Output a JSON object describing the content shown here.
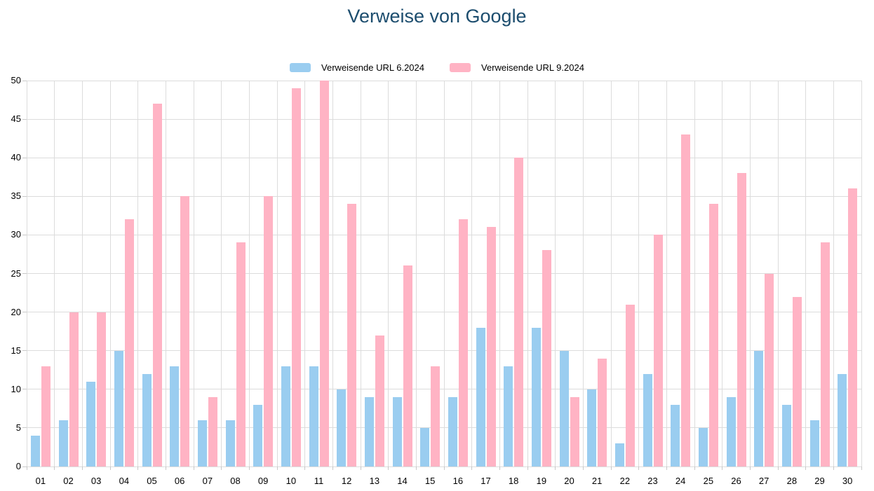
{
  "title": "Verweise von Google",
  "legend": {
    "series1_label": "Verweisende URL 6.2024",
    "series2_label": "Verweisende URL 9.2024"
  },
  "colors": {
    "title": "#1C4D6E",
    "series1": "#9ACDF0",
    "series2": "#FFB3C4",
    "grid": "#DCDCDC",
    "tick": "#C8C8C8",
    "axis_label": "#000000"
  },
  "chart_data": {
    "type": "bar",
    "title": "Verweise von Google",
    "xlabel": "",
    "ylabel": "",
    "categories": [
      "01",
      "02",
      "03",
      "04",
      "05",
      "06",
      "07",
      "08",
      "09",
      "10",
      "11",
      "12",
      "13",
      "14",
      "15",
      "16",
      "17",
      "18",
      "19",
      "20",
      "21",
      "22",
      "23",
      "24",
      "25",
      "26",
      "27",
      "28",
      "29",
      "30"
    ],
    "series": [
      {
        "name": "Verweisende URL 6.2024",
        "color": "#9ACDF0",
        "values": [
          4,
          6,
          11,
          15,
          12,
          13,
          6,
          6,
          8,
          13,
          13,
          10,
          9,
          9,
          5,
          9,
          18,
          13,
          18,
          15,
          10,
          3,
          12,
          8,
          5,
          9,
          15,
          8,
          6,
          12
        ]
      },
      {
        "name": "Verweisende URL 9.2024",
        "color": "#FFB3C4",
        "values": [
          13,
          20,
          20,
          32,
          47,
          35,
          9,
          29,
          35,
          49,
          50,
          34,
          17,
          26,
          13,
          32,
          31,
          40,
          28,
          9,
          14,
          21,
          30,
          43,
          34,
          38,
          25,
          22,
          29,
          36
        ]
      }
    ],
    "ylim": [
      0,
      50
    ],
    "yticks": [
      0,
      5,
      10,
      15,
      20,
      25,
      30,
      35,
      40,
      45,
      50
    ],
    "grid": true,
    "legend_position": "top"
  }
}
